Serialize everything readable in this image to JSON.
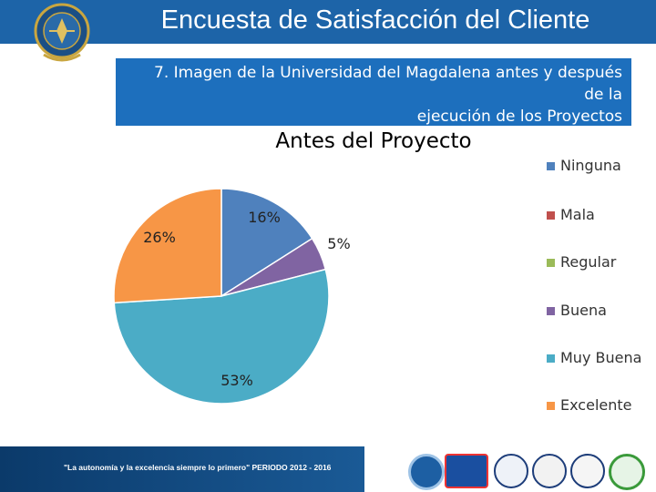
{
  "header": {
    "title": "Encuesta de Satisfacción del Cliente",
    "bar_color": "#1d64a8"
  },
  "question": {
    "text_line1": "7. Imagen de la Universidad del Magdalena antes y después de la",
    "text_line2": "ejecución de los Proyectos",
    "box_color": "#1d6fbd"
  },
  "chart_data": {
    "type": "pie",
    "title": "Antes del Proyecto",
    "categories": [
      "Ninguna",
      "Mala",
      "Regular",
      "Buena",
      "Muy Buena",
      "Excelente"
    ],
    "values": [
      16,
      0,
      0,
      5,
      53,
      26
    ],
    "labels": [
      "16%",
      "",
      "",
      "5%",
      "53%",
      "26%"
    ],
    "colors": [
      "#4f81bd",
      "#c0504d",
      "#9bbb59",
      "#8064a2",
      "#4bacc6",
      "#f79646"
    ],
    "legend_position": "right"
  },
  "legend": {
    "items": [
      {
        "label": "Ninguna",
        "color": "#4f81bd"
      },
      {
        "label": "Mala",
        "color": "#c0504d"
      },
      {
        "label": "Regular",
        "color": "#9bbb59"
      },
      {
        "label": "Buena",
        "color": "#8064a2"
      },
      {
        "label": "Muy Buena",
        "color": "#4bacc6"
      },
      {
        "label": "Excelente",
        "color": "#f79646"
      }
    ]
  },
  "footer": {
    "slogan": "\"La autonomía y la excelencia siempre lo primero\" PERIODO 2012 - 2016",
    "icons": [
      "university-seal-icon",
      "acreditacion-badge-icon",
      "certification-seal-icon",
      "iqnet-seal-icon",
      "quality-seal-icon",
      "checkmark-seal-icon"
    ]
  }
}
